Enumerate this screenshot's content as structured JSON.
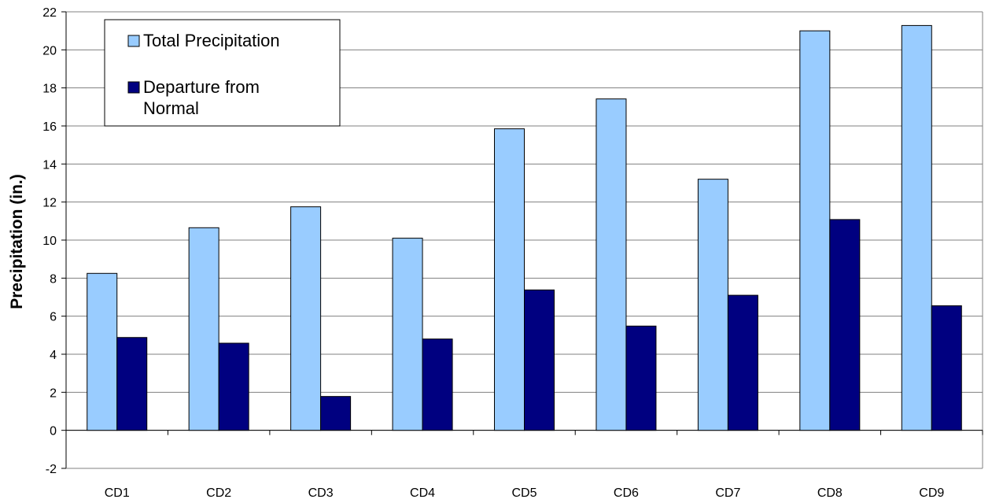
{
  "chart_data": {
    "type": "bar",
    "title": "",
    "xlabel": "",
    "ylabel": "Precipitation (in.)",
    "ylim": [
      -2,
      22
    ],
    "yticks": [
      -2,
      0,
      2,
      4,
      6,
      8,
      10,
      12,
      14,
      16,
      18,
      20,
      22
    ],
    "grid": true,
    "legend_position": "top-left",
    "categories": [
      "CD1",
      "CD2",
      "CD3",
      "CD4",
      "CD5",
      "CD6",
      "CD7",
      "CD8",
      "CD9"
    ],
    "series": [
      {
        "name": "Total Precipitation",
        "color": "#99CCFF",
        "values": [
          8.25,
          10.65,
          11.75,
          10.1,
          15.85,
          17.42,
          13.2,
          21.0,
          21.28
        ]
      },
      {
        "name": "Departure from Normal",
        "color": "#000080",
        "values": [
          4.88,
          4.58,
          1.78,
          4.8,
          7.38,
          5.48,
          7.1,
          11.08,
          6.55
        ]
      }
    ],
    "legend": {
      "items": [
        {
          "label_lines": [
            "Total Precipitation"
          ]
        },
        {
          "label_lines": [
            "Departure from",
            "Normal"
          ]
        }
      ]
    }
  }
}
